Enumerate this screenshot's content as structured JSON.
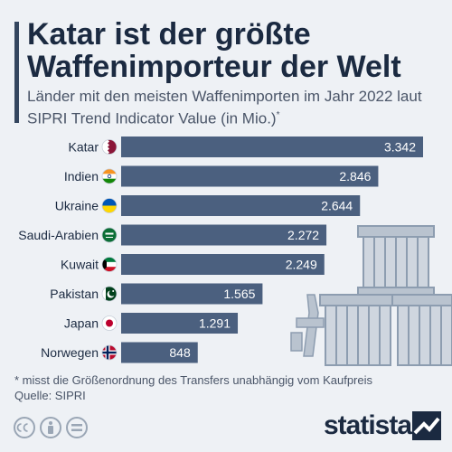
{
  "header": {
    "title": "Katar ist der größte Waffenimporteur der Welt",
    "subtitle": "Länder mit den meisten Waffenimporten im Jahr 2022 laut SIPRI Trend Indicator Value (in Mio.)",
    "subtitle_mark": "*"
  },
  "chart_data": {
    "type": "bar",
    "orientation": "horizontal",
    "categories": [
      "Katar",
      "Indien",
      "Ukraine",
      "Saudi-Arabien",
      "Kuwait",
      "Pakistan",
      "Japan",
      "Norwegen"
    ],
    "values": [
      3342,
      2846,
      2644,
      2272,
      2249,
      1565,
      1291,
      848
    ],
    "value_labels": [
      "3.342",
      "2.846",
      "2.644",
      "2.272",
      "2.249",
      "1.565",
      "1.291",
      "848"
    ],
    "xlim": [
      0,
      3342
    ],
    "grid": false,
    "legend": "none",
    "bar_color": "#4b607f",
    "label_color": "#ffffff"
  },
  "flags": [
    "qatar-flag-icon",
    "india-flag-icon",
    "ukraine-flag-icon",
    "saudi-arabia-flag-icon",
    "kuwait-flag-icon",
    "pakistan-flag-icon",
    "japan-flag-icon",
    "norway-flag-icon"
  ],
  "footer": {
    "footnote": "* misst die Größenordnung des Transfers unabhängig vom Kaufpreis",
    "source": "Quelle: SIPRI",
    "brand": "statista"
  },
  "colors": {
    "background": "#eef1f5",
    "title": "#1b2a41",
    "accent": "#33455e",
    "crate": "#8d9db0"
  }
}
